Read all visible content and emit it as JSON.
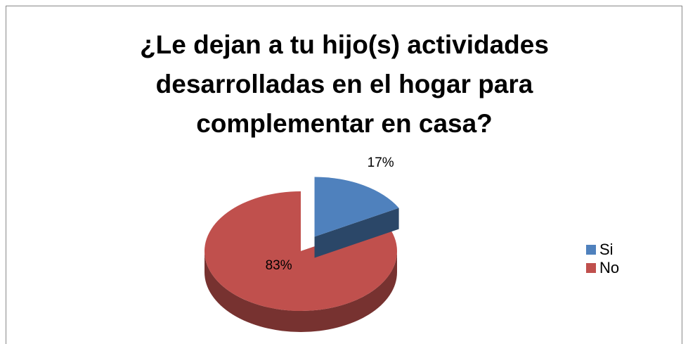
{
  "chart_data": {
    "type": "pie",
    "title": "¿Le dejan a tu hijo(s) actividades desarrolladas en el hogar para complementar en casa?",
    "categories": [
      "Si",
      "No"
    ],
    "values": [
      17,
      83
    ],
    "value_labels": [
      "17%",
      "83%"
    ],
    "colors": [
      "#4f81bd",
      "#c0504d"
    ],
    "legend": "right"
  }
}
